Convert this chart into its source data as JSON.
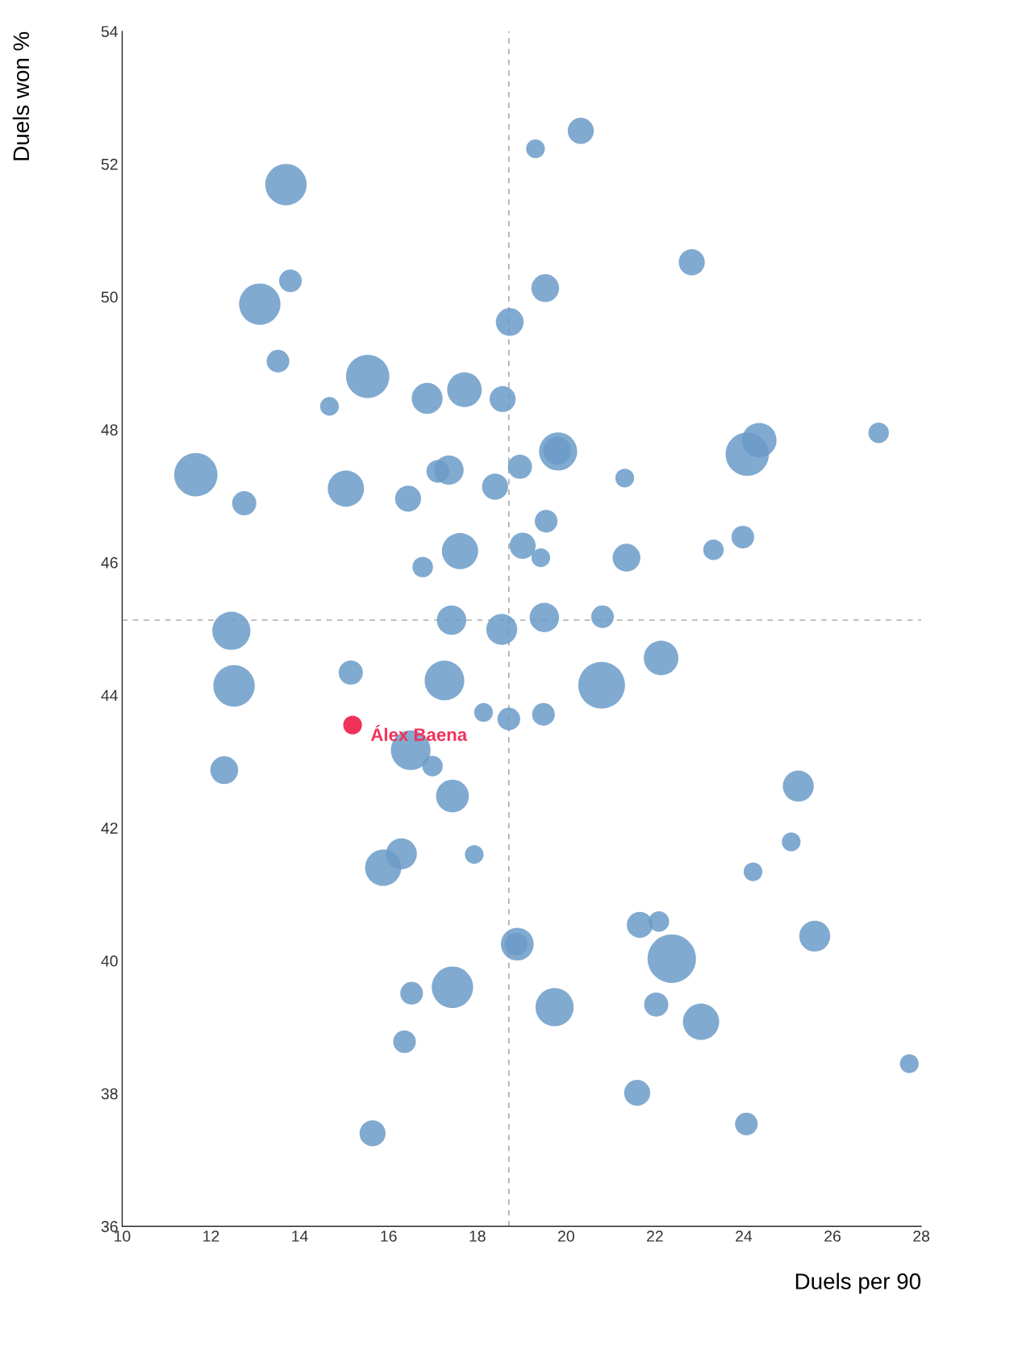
{
  "chart_data": {
    "type": "bubble",
    "xlabel": "Duels per 90",
    "ylabel": "Duels won %",
    "xlim": [
      10,
      28
    ],
    "xticks": [
      10,
      12,
      14,
      16,
      18,
      20,
      22,
      24,
      26,
      28
    ],
    "ylim": [
      36,
      54
    ],
    "yticks": [
      36,
      38,
      40,
      42,
      44,
      46,
      48,
      50,
      52,
      54
    ],
    "grid": false,
    "legend": false,
    "ref_lines": [
      {
        "axis": "x",
        "value": 18.71,
        "color": "#aaaaaa",
        "line_style": "dashed"
      },
      {
        "axis": "y",
        "value": 45.13,
        "color": "#aaaaaa",
        "line_style": "dashed"
      }
    ],
    "series": [
      {
        "color": "#6b9bc8",
        "x": [
          13.69,
          19.31,
          20.33,
          13.79,
          13.1,
          22.83,
          19.53,
          18.73,
          13.51,
          15.53,
          14.67,
          16.87,
          17.71,
          18.57,
          27.04,
          19.82,
          19.8,
          24.35,
          24.08,
          11.66,
          12.75,
          15.04,
          16.44,
          17.11,
          17.36,
          18.4,
          18.96,
          21.32,
          19.55,
          17.61,
          19.02,
          19.43,
          16.77,
          21.36,
          23.32,
          23.98,
          12.46,
          17.42,
          18.55,
          19.51,
          20.82,
          22.14,
          12.52,
          15.15,
          17.26,
          20.8,
          18.14,
          18.71,
          19.49,
          12.3,
          16.5,
          16.99,
          17.44,
          25.23,
          25.07,
          24.21,
          16.29,
          15.88,
          17.93,
          18.9,
          18.88,
          21.66,
          22.09,
          22.38,
          25.6,
          16.52,
          17.44,
          19.74,
          22.03,
          23.04,
          16.36,
          27.73,
          21.6,
          15.64,
          24.06
        ],
        "values": [
          51.69,
          52.23,
          52.5,
          50.24,
          49.89,
          50.52,
          50.13,
          49.62,
          49.03,
          48.8,
          48.35,
          48.47,
          48.6,
          48.46,
          47.95,
          47.67,
          47.68,
          47.84,
          47.63,
          47.32,
          46.89,
          47.11,
          46.96,
          47.37,
          47.39,
          47.14,
          47.44,
          47.27,
          46.62,
          46.17,
          46.25,
          46.07,
          45.93,
          46.07,
          46.19,
          46.38,
          44.97,
          45.13,
          44.99,
          45.17,
          45.18,
          44.56,
          44.14,
          44.34,
          44.22,
          44.15,
          43.74,
          43.64,
          43.71,
          42.87,
          43.17,
          42.93,
          42.48,
          42.63,
          41.79,
          41.34,
          41.61,
          41.4,
          41.6,
          40.25,
          40.25,
          40.54,
          40.59,
          40.03,
          40.37,
          39.51,
          39.6,
          39.3,
          39.34,
          39.08,
          38.78,
          38.45,
          38.01,
          37.4,
          37.54
        ],
        "sizes": [
          0.73,
          0.15,
          0.29,
          0.22,
          0.73,
          0.29,
          0.33,
          0.33,
          0.22,
          0.8,
          0.15,
          0.41,
          0.51,
          0.29,
          0.18,
          0.62,
          0.33,
          0.51,
          0.8,
          0.8,
          0.25,
          0.56,
          0.29,
          0.22,
          0.37,
          0.29,
          0.25,
          0.15,
          0.22,
          0.56,
          0.29,
          0.15,
          0.18,
          0.33,
          0.18,
          0.22,
          0.62,
          0.37,
          0.41,
          0.37,
          0.22,
          0.51,
          0.73,
          0.25,
          0.67,
          0.93,
          0.15,
          0.22,
          0.22,
          0.33,
          0.67,
          0.18,
          0.46,
          0.41,
          0.15,
          0.15,
          0.41,
          0.56,
          0.15,
          0.46,
          0.22,
          0.29,
          0.18,
          1.0,
          0.41,
          0.22,
          0.73,
          0.62,
          0.25,
          0.56,
          0.22,
          0.15,
          0.29,
          0.29,
          0.22
        ]
      },
      {
        "name": "Álex Baena",
        "color": "#f0325a",
        "x": [
          15.19
        ],
        "values": [
          43.55
        ],
        "sizes": [
          0.15
        ]
      }
    ]
  }
}
